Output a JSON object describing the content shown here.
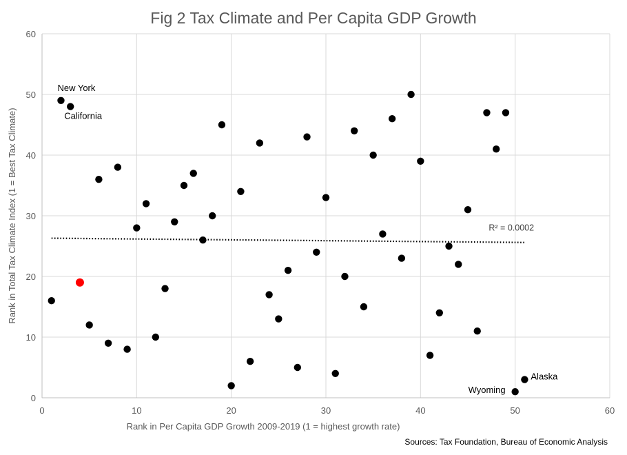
{
  "chart_data": {
    "type": "scatter",
    "title": "Fig 2 Tax Climate and Per Capita GDP Growth",
    "xlabel": "Rank in Per Capita GDP Growth  2009-2019 (1 = highest growth rate)",
    "ylabel": "Rank in Total Tax Climate Index (1 = Best Tax Climate)",
    "xlim": [
      0,
      60
    ],
    "ylim": [
      0,
      60
    ],
    "xticks": [
      0,
      10,
      20,
      30,
      40,
      50,
      60
    ],
    "yticks": [
      0,
      10,
      20,
      30,
      40,
      50,
      60
    ],
    "grid": true,
    "point_color": "#000000",
    "highlight_color": "#ff0000",
    "trendline": {
      "type": "linear",
      "x": [
        1,
        51
      ],
      "y": [
        26.3,
        25.6
      ],
      "label": "R² = 0.0002"
    },
    "highlight_point": {
      "x": 4,
      "y": 19
    },
    "points": [
      {
        "x": 1,
        "y": 16
      },
      {
        "x": 2,
        "y": 49
      },
      {
        "x": 3,
        "y": 48
      },
      {
        "x": 5,
        "y": 12
      },
      {
        "x": 6,
        "y": 36
      },
      {
        "x": 7,
        "y": 9
      },
      {
        "x": 8,
        "y": 38
      },
      {
        "x": 9,
        "y": 8
      },
      {
        "x": 10,
        "y": 28
      },
      {
        "x": 11,
        "y": 32
      },
      {
        "x": 12,
        "y": 10
      },
      {
        "x": 13,
        "y": 18
      },
      {
        "x": 14,
        "y": 29
      },
      {
        "x": 15,
        "y": 35
      },
      {
        "x": 16,
        "y": 37
      },
      {
        "x": 17,
        "y": 26
      },
      {
        "x": 18,
        "y": 30
      },
      {
        "x": 19,
        "y": 45
      },
      {
        "x": 20,
        "y": 2
      },
      {
        "x": 21,
        "y": 34
      },
      {
        "x": 22,
        "y": 6
      },
      {
        "x": 23,
        "y": 42
      },
      {
        "x": 24,
        "y": 17
      },
      {
        "x": 25,
        "y": 13
      },
      {
        "x": 26,
        "y": 21
      },
      {
        "x": 27,
        "y": 5
      },
      {
        "x": 28,
        "y": 43
      },
      {
        "x": 29,
        "y": 24
      },
      {
        "x": 30,
        "y": 33
      },
      {
        "x": 31,
        "y": 4
      },
      {
        "x": 32,
        "y": 20
      },
      {
        "x": 33,
        "y": 44
      },
      {
        "x": 34,
        "y": 15
      },
      {
        "x": 35,
        "y": 40
      },
      {
        "x": 36,
        "y": 27
      },
      {
        "x": 37,
        "y": 46
      },
      {
        "x": 38,
        "y": 23
      },
      {
        "x": 39,
        "y": 50
      },
      {
        "x": 40,
        "y": 39
      },
      {
        "x": 41,
        "y": 7
      },
      {
        "x": 42,
        "y": 14
      },
      {
        "x": 43,
        "y": 25
      },
      {
        "x": 44,
        "y": 22
      },
      {
        "x": 45,
        "y": 31
      },
      {
        "x": 46,
        "y": 11
      },
      {
        "x": 47,
        "y": 47
      },
      {
        "x": 48,
        "y": 41
      },
      {
        "x": 49,
        "y": 47
      },
      {
        "x": 50,
        "y": 1
      },
      {
        "x": 51,
        "y": 3
      }
    ],
    "annotations": [
      {
        "text": "New York",
        "x": 2,
        "y": 49
      },
      {
        "text": "California",
        "x": 3,
        "y": 48
      },
      {
        "text": "Wyoming",
        "x": 50,
        "y": 1
      },
      {
        "text": "Alaska",
        "x": 51,
        "y": 3
      }
    ],
    "source": "Sources: Tax Foundation, Bureau of Economic Analysis"
  }
}
